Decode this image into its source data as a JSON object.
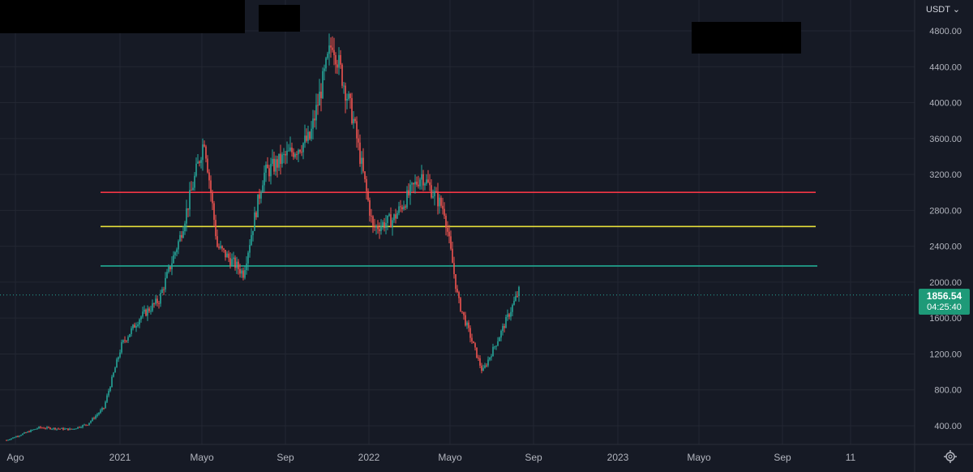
{
  "axis": {
    "currency_label": "USDT",
    "y_ticks": [
      "4800.00",
      "4400.00",
      "4000.00",
      "3600.00",
      "3200.00",
      "2800.00",
      "2400.00",
      "2000.00",
      "1600.00",
      "1200.00",
      "800.00",
      "400.00"
    ],
    "x_ticks": [
      "Ago",
      "2021",
      "Mayo",
      "Sep",
      "2022",
      "Mayo",
      "Sep",
      "2023",
      "Mayo",
      "Sep",
      "11"
    ]
  },
  "price_badge": {
    "price": "1856.54",
    "countdown": "04:25:40"
  },
  "colors": {
    "background": "#161a25",
    "grid": "#232732",
    "candle_up": "#26a69a",
    "candle_down": "#ef5350",
    "line_red": "#f23645",
    "line_yellow": "#e7e03a",
    "line_green": "#22ab94"
  },
  "chart_data": {
    "type": "line",
    "series": [
      {
        "x": [
          "2020-08",
          "2020-09",
          "2020-10",
          "2020-11",
          "2020-12",
          "2021-01",
          "2021-02",
          "2021-03",
          "2021-04",
          "2021-05",
          "2021-06",
          "2021-07",
          "2021-08",
          "2021-09",
          "2021-10",
          "2021-11",
          "2021-12",
          "2022-01",
          "2022-02",
          "2022-03",
          "2022-04",
          "2022-05",
          "2022-06",
          "2022-07",
          "2022-08"
        ],
        "values": [
          240,
          380,
          360,
          420,
          600,
          1300,
          1600,
          1800,
          2500,
          3600,
          2400,
          2100,
          3200,
          3400,
          3600,
          4700,
          3800,
          2600,
          2700,
          3200,
          2800,
          1800,
          1000,
          1400,
          1900
        ]
      }
    ],
    "horizontal_levels": [
      {
        "value": 3000,
        "color": "#f23645"
      },
      {
        "value": 2620,
        "color": "#e7e03a"
      },
      {
        "value": 2180,
        "color": "#22ab94"
      }
    ],
    "last_price": 1856.54,
    "ylim": [
      200,
      4950
    ],
    "xlim": [
      "2020-08",
      "2023-11"
    ],
    "grid": true
  }
}
